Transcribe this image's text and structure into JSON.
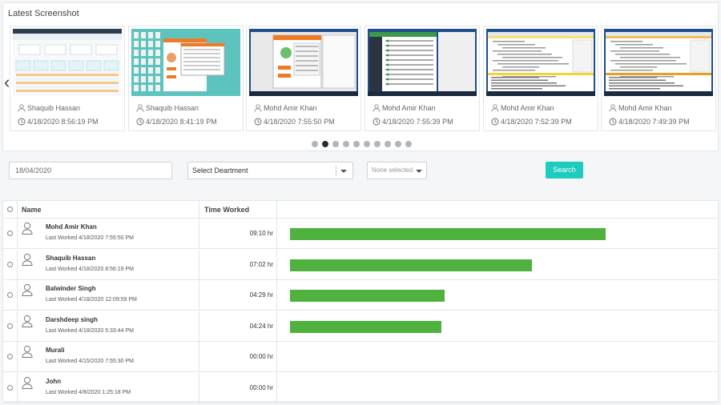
{
  "screenshots": {
    "title": "Latest Screenshot",
    "cards": [
      {
        "user": "Shaquib Hassan",
        "time": "4/18/2020 8:56:19 PM",
        "theme": "web"
      },
      {
        "user": "Shaquib Hassan",
        "time": "4/18/2020 8:41:19 PM",
        "theme": "teal"
      },
      {
        "user": "Mohd Amir Khan",
        "time": "4/18/2020 7:55:50 PM",
        "theme": "desktop"
      },
      {
        "user": "Mohd Amir Khan",
        "time": "4/18/2020 7:55:39 PM",
        "theme": "dark"
      },
      {
        "user": "Mohd Amir Khan",
        "time": "4/18/2020 7:52:39 PM",
        "theme": "ide"
      },
      {
        "user": "Mohd Amir Khan",
        "time": "4/18/2020 7:49:39 PM",
        "theme": "ide2"
      }
    ],
    "dots_count": 10,
    "active_dot": 1
  },
  "filters": {
    "date_value": "18/04/2020",
    "department_value": "Select Deartment",
    "multi_placeholder": "None selected",
    "search_label": "Search"
  },
  "table": {
    "headers": {
      "name": "Name",
      "time": "Time Worked"
    },
    "max_minutes": 600,
    "rows": [
      {
        "name": "Mohd Amir Khan",
        "last": "Last Worked 4/18/2020 7:55:50 PM",
        "time": "09:10 hr",
        "minutes": 550
      },
      {
        "name": "Shaquib Hassan",
        "last": "Last Worked 4/18/2020 8:56:19 PM",
        "time": "07:02 hr",
        "minutes": 422
      },
      {
        "name": "Balwinder Singh",
        "last": "Last Worked 4/18/2020 12:09:59 PM",
        "time": "04:29 hr",
        "minutes": 269
      },
      {
        "name": "Darshdeep singh",
        "last": "Last Worked 4/18/2020 5:33:44 PM",
        "time": "04:24 hr",
        "minutes": 264
      },
      {
        "name": "Murali",
        "last": "Last Worked 4/15/2020 7:55:30 PM",
        "time": "00:00 hr",
        "minutes": 0
      },
      {
        "name": "John",
        "last": "Last Worked 4/8/2020 1:25:18 PM",
        "time": "00:00 hr",
        "minutes": 0
      }
    ]
  },
  "colors": {
    "accent": "#1ecbbf",
    "bar": "#4fb23f",
    "active_dot": "#2c2c2c"
  }
}
